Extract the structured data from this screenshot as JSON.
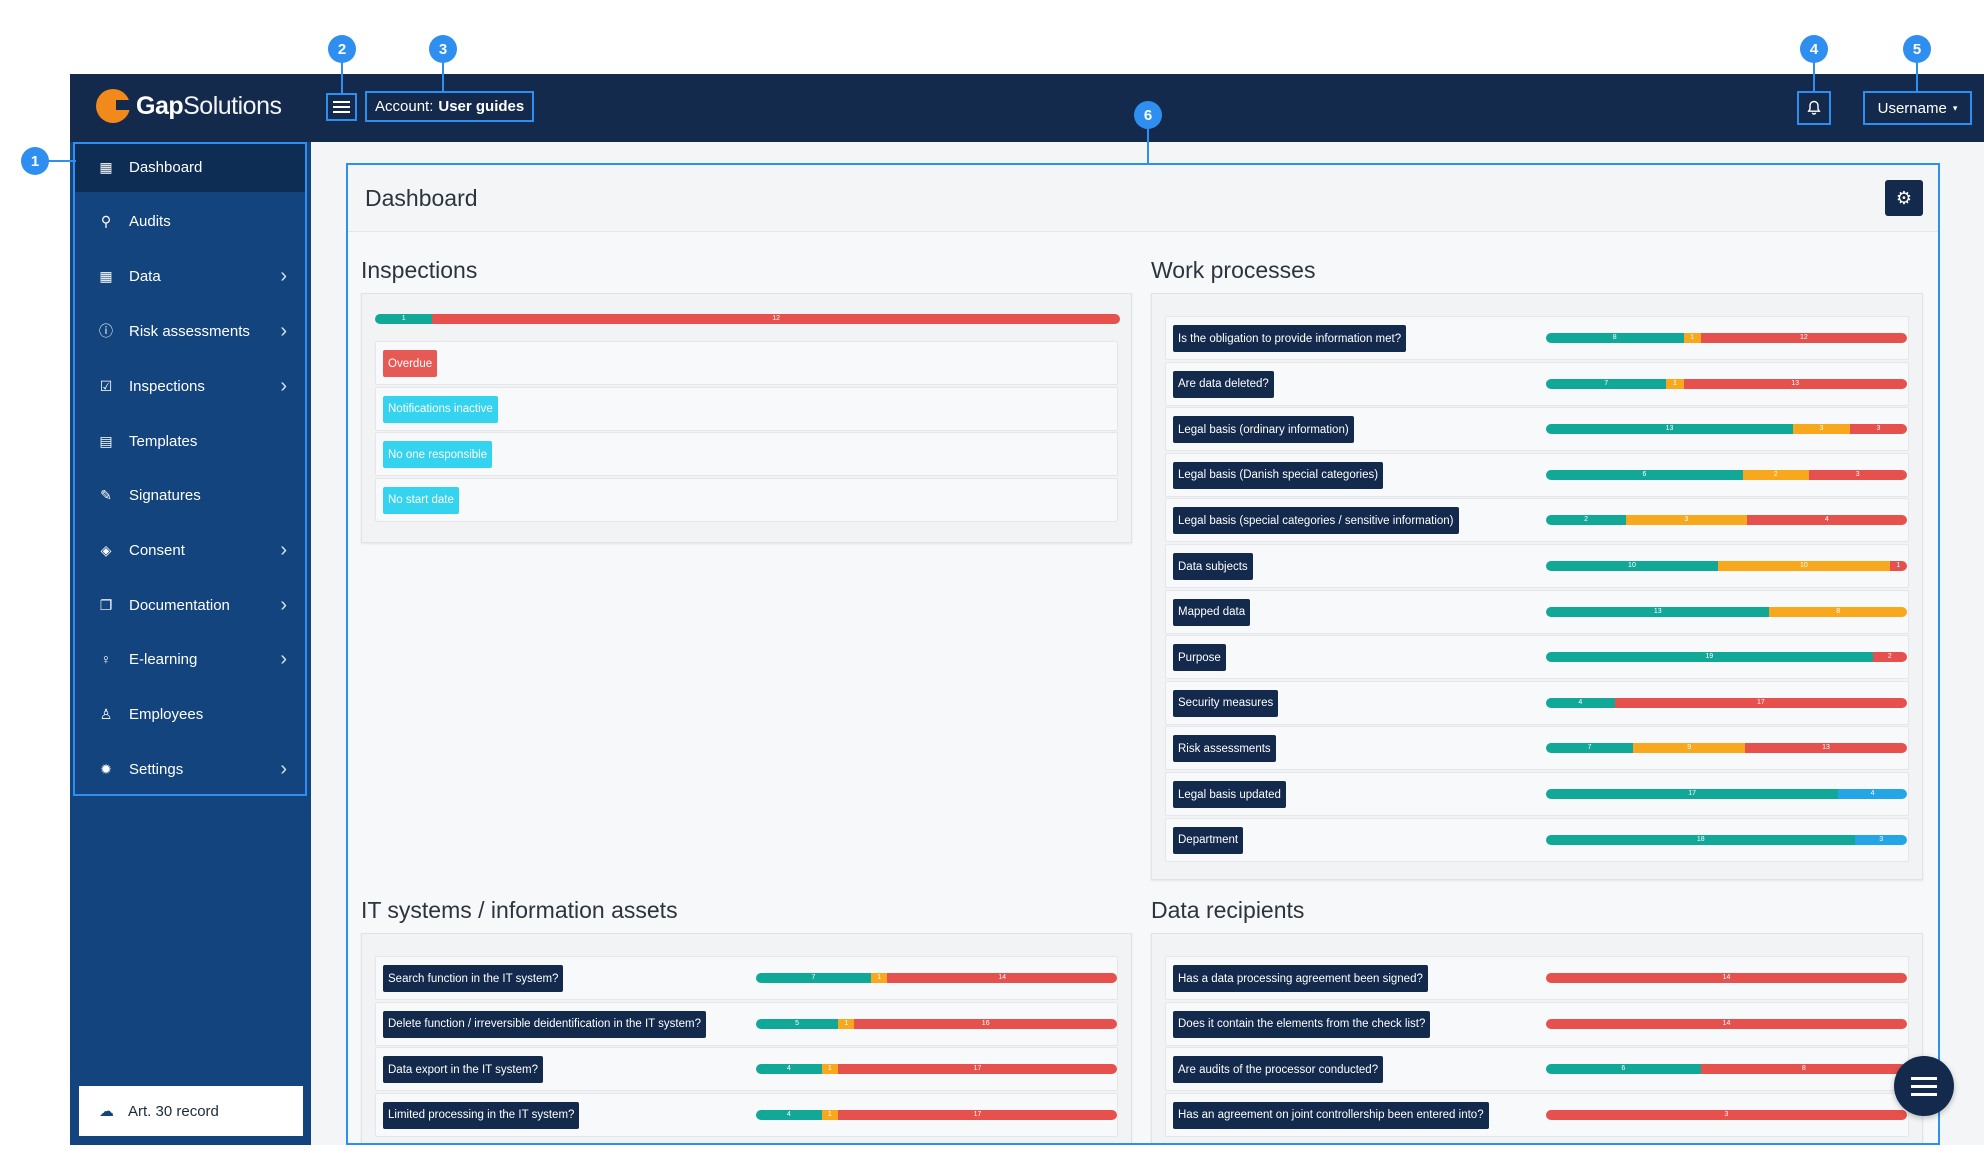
{
  "header": {
    "logo_bold": "Gap",
    "logo_light": "Solutions",
    "account_prefix": "Account:",
    "account_name": "User guides",
    "username": "Username",
    "caret_icon": "▾",
    "bell_icon": "bell-icon"
  },
  "callouts": [
    "1",
    "2",
    "3",
    "4",
    "5",
    "6"
  ],
  "sidebar": {
    "items": [
      {
        "label": "Dashboard",
        "icon": "▦",
        "chevron": ""
      },
      {
        "label": "Audits",
        "icon": "⚲",
        "chevron": ""
      },
      {
        "label": "Data",
        "icon": "▦",
        "chevron": "›"
      },
      {
        "label": "Risk assessments",
        "icon": "ⓘ",
        "chevron": "›"
      },
      {
        "label": "Inspections",
        "icon": "☑",
        "chevron": "›"
      },
      {
        "label": "Templates",
        "icon": "▤",
        "chevron": ""
      },
      {
        "label": "Signatures",
        "icon": "✎",
        "chevron": ""
      },
      {
        "label": "Consent",
        "icon": "◈",
        "chevron": "›"
      },
      {
        "label": "Documentation",
        "icon": "❐",
        "chevron": "›"
      },
      {
        "label": "E-learning",
        "icon": "♀",
        "chevron": "›"
      },
      {
        "label": "Employees",
        "icon": "♙",
        "chevron": ""
      },
      {
        "label": "Settings",
        "icon": "✹",
        "chevron": "›"
      }
    ],
    "footer_label": "Art. 30 record",
    "footer_icon": "☁"
  },
  "dashboard": {
    "title": "Dashboard",
    "gear_icon": "⚙",
    "sections": {
      "inspections": {
        "title": "Inspections",
        "summary_bar": [
          {
            "v": 1,
            "c": "g"
          },
          {
            "v": 12,
            "c": "r"
          }
        ],
        "tags": [
          {
            "label": "Overdue",
            "color": "red"
          },
          {
            "label": "Notifications inactive",
            "color": "cyan"
          },
          {
            "label": "No one responsible",
            "color": "cyan"
          },
          {
            "label": "No start date",
            "color": "cyan"
          }
        ]
      },
      "work_processes": {
        "title": "Work processes",
        "rows": [
          {
            "label": "Is the obligation to provide information met?",
            "bar": [
              {
                "v": 8,
                "c": "g"
              },
              {
                "v": 1,
                "c": "o"
              },
              {
                "v": 12,
                "c": "r"
              }
            ]
          },
          {
            "label": "Are data deleted?",
            "bar": [
              {
                "v": 7,
                "c": "g"
              },
              {
                "v": 1,
                "c": "o"
              },
              {
                "v": 13,
                "c": "r"
              }
            ]
          },
          {
            "label": "Legal basis (ordinary information)",
            "bar": [
              {
                "v": 13,
                "c": "g"
              },
              {
                "v": 3,
                "c": "o"
              },
              {
                "v": 3,
                "c": "r"
              }
            ]
          },
          {
            "label": "Legal basis (Danish special categories)",
            "bar": [
              {
                "v": 6,
                "c": "g"
              },
              {
                "v": 2,
                "c": "o"
              },
              {
                "v": 3,
                "c": "r"
              }
            ]
          },
          {
            "label": "Legal basis (special categories / sensitive information)",
            "bar": [
              {
                "v": 2,
                "c": "g"
              },
              {
                "v": 3,
                "c": "o"
              },
              {
                "v": 4,
                "c": "r"
              }
            ]
          },
          {
            "label": "Data subjects",
            "bar": [
              {
                "v": 10,
                "c": "g"
              },
              {
                "v": 10,
                "c": "o"
              },
              {
                "v": 1,
                "c": "r"
              }
            ]
          },
          {
            "label": "Mapped data",
            "bar": [
              {
                "v": 13,
                "c": "g"
              },
              {
                "v": 8,
                "c": "o"
              }
            ]
          },
          {
            "label": "Purpose",
            "bar": [
              {
                "v": 19,
                "c": "g"
              },
              {
                "v": 2,
                "c": "r"
              }
            ]
          },
          {
            "label": "Security measures",
            "bar": [
              {
                "v": 4,
                "c": "g"
              },
              {
                "v": 17,
                "c": "r"
              }
            ]
          },
          {
            "label": "Risk assessments",
            "bar": [
              {
                "v": 7,
                "c": "g"
              },
              {
                "v": 9,
                "c": "o"
              },
              {
                "v": 13,
                "c": "r"
              }
            ]
          },
          {
            "label": "Legal basis updated",
            "bar": [
              {
                "v": 17,
                "c": "g"
              },
              {
                "v": 4,
                "c": "b"
              }
            ]
          },
          {
            "label": "Department",
            "bar": [
              {
                "v": 18,
                "c": "g"
              },
              {
                "v": 3,
                "c": "b"
              }
            ]
          }
        ]
      },
      "it_systems": {
        "title": "IT systems / information assets",
        "rows": [
          {
            "label": "Search function in the IT system?",
            "bar": [
              {
                "v": 7,
                "c": "g"
              },
              {
                "v": 1,
                "c": "o"
              },
              {
                "v": 14,
                "c": "r"
              }
            ]
          },
          {
            "label": "Delete function / irreversible deidentification in the IT system?",
            "bar": [
              {
                "v": 5,
                "c": "g"
              },
              {
                "v": 1,
                "c": "o"
              },
              {
                "v": 16,
                "c": "r"
              }
            ]
          },
          {
            "label": "Data export in the IT system?",
            "bar": [
              {
                "v": 4,
                "c": "g"
              },
              {
                "v": 1,
                "c": "o"
              },
              {
                "v": 17,
                "c": "r"
              }
            ]
          },
          {
            "label": "Limited processing in the IT system?",
            "bar": [
              {
                "v": 4,
                "c": "g"
              },
              {
                "v": 1,
                "c": "o"
              },
              {
                "v": 17,
                "c": "r"
              }
            ]
          }
        ]
      },
      "data_recipients": {
        "title": "Data recipients",
        "rows": [
          {
            "label": "Has a data processing agreement been signed?",
            "bar": [
              {
                "v": 14,
                "c": "r"
              }
            ]
          },
          {
            "label": "Does it contain the elements from the check list?",
            "bar": [
              {
                "v": 14,
                "c": "r"
              }
            ]
          },
          {
            "label": "Are audits of the processor conducted?",
            "bar": [
              {
                "v": 6,
                "c": "g"
              },
              {
                "v": 8,
                "c": "r"
              }
            ]
          },
          {
            "label": "Has an agreement on joint controllership been entered into?",
            "bar": [
              {
                "v": 3,
                "c": "r"
              }
            ]
          }
        ]
      }
    }
  },
  "colors": {
    "navy": "#132a4d",
    "sidebar": "#14447e",
    "green": "#12a898",
    "orange": "#f7a81d",
    "red": "#e6514e",
    "blue": "#24a6e6",
    "callout": "#2f8ff0"
  }
}
